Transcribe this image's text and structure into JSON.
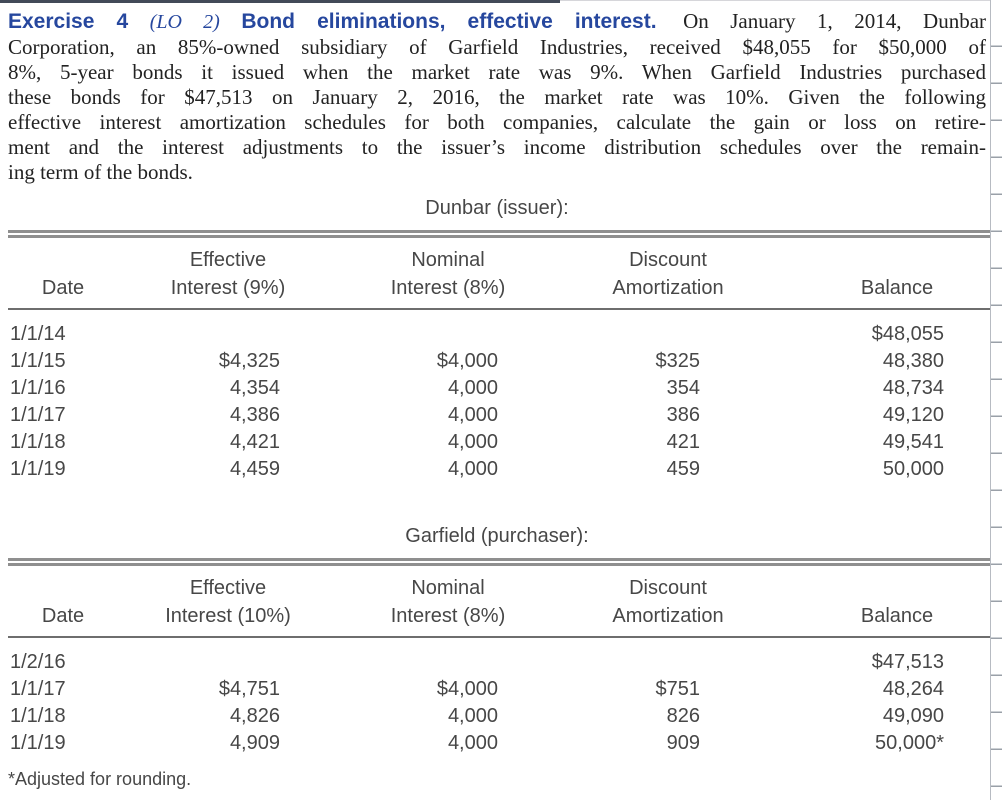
{
  "heading": {
    "exercise_label": "Exercise 4",
    "lo_label": "(LO 2)",
    "exercise_title": "Bond eliminations, effective interest.",
    "accent_color": "#26479e"
  },
  "paragraph": {
    "lines": [
      "On January 1, 2014, Dunbar",
      "Corporation, an 85%-owned subsidiary of Garfield Industries, received $48,055 for $50,000 of",
      "8%, 5-year bonds it issued when the market rate was 9%. When Garfield Industries purchased",
      "these bonds for $47,513 on January 2, 2016, the market rate was 10%. Given the following",
      "effective interest amortization schedules for both companies, calculate the gain or loss on retire-",
      "ment and the interest adjustments to the issuer’s income distribution schedules over the remain-",
      "ing term of the bonds."
    ]
  },
  "tables": [
    {
      "caption": "Dunbar (issuer):",
      "columns": [
        {
          "line1": "",
          "line2": "Date"
        },
        {
          "line1": "Effective",
          "line2": "Interest (9%)"
        },
        {
          "line1": "Nominal",
          "line2": "Interest (8%)"
        },
        {
          "line1": "Discount",
          "line2": "Amortization"
        },
        {
          "line1": "",
          "line2": "Balance"
        }
      ],
      "rows": [
        [
          "1/1/14",
          "",
          "",
          "",
          "$48,055"
        ],
        [
          "1/1/15",
          "$4,325",
          "$4,000",
          "$325",
          "48,380"
        ],
        [
          "1/1/16",
          "4,354",
          "4,000",
          "354",
          "48,734"
        ],
        [
          "1/1/17",
          "4,386",
          "4,000",
          "386",
          "49,120"
        ],
        [
          "1/1/18",
          "4,421",
          "4,000",
          "421",
          "49,541"
        ],
        [
          "1/1/19",
          "4,459",
          "4,000",
          "459",
          "50,000"
        ]
      ]
    },
    {
      "caption": "Garfield (purchaser):",
      "columns": [
        {
          "line1": "",
          "line2": "Date"
        },
        {
          "line1": "Effective",
          "line2": "Interest (10%)"
        },
        {
          "line1": "Nominal",
          "line2": "Interest (8%)"
        },
        {
          "line1": "Discount",
          "line2": "Amortization"
        },
        {
          "line1": "",
          "line2": "Balance"
        }
      ],
      "rows": [
        [
          "1/2/16",
          "",
          "",
          "",
          "$47,513"
        ],
        [
          "1/1/17",
          "$4,751",
          "$4,000",
          "$751",
          "48,264"
        ],
        [
          "1/1/18",
          "4,826",
          "4,000",
          "826",
          "49,090"
        ],
        [
          "1/1/19",
          "4,909",
          "4,000",
          "909",
          "50,000*"
        ]
      ]
    }
  ],
  "footnote": "*Adjusted for rounding."
}
